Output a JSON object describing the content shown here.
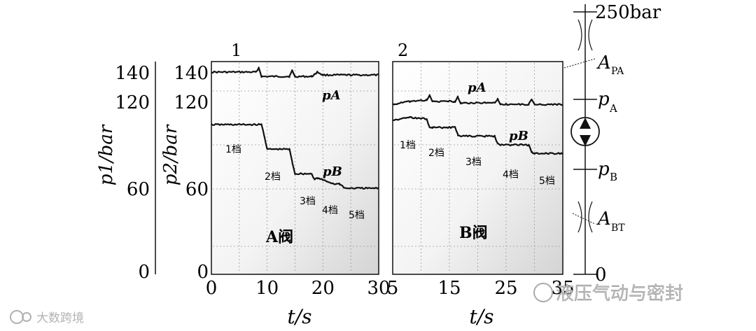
{
  "chart_data": [
    {
      "type": "line",
      "panel_number": "1",
      "xlabel": "t/s",
      "x_ticks": [
        0,
        10,
        20,
        30
      ],
      "xlim": [
        0,
        30
      ],
      "y_tick_labels_left": [
        "140",
        "120",
        "60",
        "0"
      ],
      "y_tick_labels_inner": [
        "140",
        "120",
        "60",
        "0"
      ],
      "ylabel_left": "p1/bar",
      "ylabel_inner": "p2/bar",
      "valve_label": "A阀",
      "series": [
        {
          "name": "pA",
          "points": [
            [
              0,
              140
            ],
            [
              8,
              140
            ],
            [
              8.5,
              143
            ],
            [
              9,
              137
            ],
            [
              14,
              137
            ],
            [
              14.5,
              141
            ],
            [
              15,
              137
            ],
            [
              18,
              137
            ],
            [
              19,
              140
            ],
            [
              20,
              138
            ],
            [
              30,
              138
            ]
          ]
        },
        {
          "name": "pB",
          "points": [
            [
              0,
              104
            ],
            [
              9,
              104
            ],
            [
              9.5,
              96
            ],
            [
              10,
              87
            ],
            [
              14,
              87
            ],
            [
              14.5,
              78
            ],
            [
              15,
              70
            ],
            [
              18,
              70
            ],
            [
              18.5,
              66
            ],
            [
              19,
              67
            ],
            [
              22,
              63
            ],
            [
              23,
              63
            ],
            [
              24,
              60
            ],
            [
              30,
              60
            ]
          ]
        }
      ],
      "annotations": [
        "1档",
        "2档",
        "3档",
        "4档",
        "5档"
      ]
    },
    {
      "type": "line",
      "panel_number": "2",
      "xlabel": "t/s",
      "x_ticks": [
        5,
        15,
        25,
        35
      ],
      "xlim": [
        5,
        35
      ],
      "valve_label": "B阀",
      "series": [
        {
          "name": "pA",
          "points": [
            [
              5,
              118
            ],
            [
              8,
              120
            ],
            [
              11,
              121
            ],
            [
              11.5,
              124
            ],
            [
              12,
              120
            ],
            [
              16,
              120
            ],
            [
              16.5,
              123
            ],
            [
              17,
              119
            ],
            [
              23,
              119
            ],
            [
              23.5,
              122
            ],
            [
              24,
              118
            ],
            [
              29,
              118
            ],
            [
              29.5,
              121
            ],
            [
              30,
              118
            ],
            [
              35,
              118
            ]
          ]
        },
        {
          "name": "pB",
          "points": [
            [
              5,
              107
            ],
            [
              8,
              109
            ],
            [
              11,
              108
            ],
            [
              11.5,
              102
            ],
            [
              12,
              102
            ],
            [
              16,
              102
            ],
            [
              16.5,
              97
            ],
            [
              17,
              96
            ],
            [
              23,
              96
            ],
            [
              23.5,
              91
            ],
            [
              24,
              90
            ],
            [
              29,
              90
            ],
            [
              29.5,
              85
            ],
            [
              30,
              84
            ],
            [
              35,
              84
            ]
          ]
        }
      ],
      "annotations": [
        "1档",
        "2档",
        "3档",
        "4档",
        "5档"
      ]
    }
  ],
  "schematic": {
    "top_label": "250bar",
    "bottom_label": "0",
    "labels": [
      "APA",
      "pA",
      "pB",
      "ABT"
    ]
  },
  "watermarks": {
    "bottom_left": "大数跨境",
    "bottom_right": "液压气动与密封"
  }
}
